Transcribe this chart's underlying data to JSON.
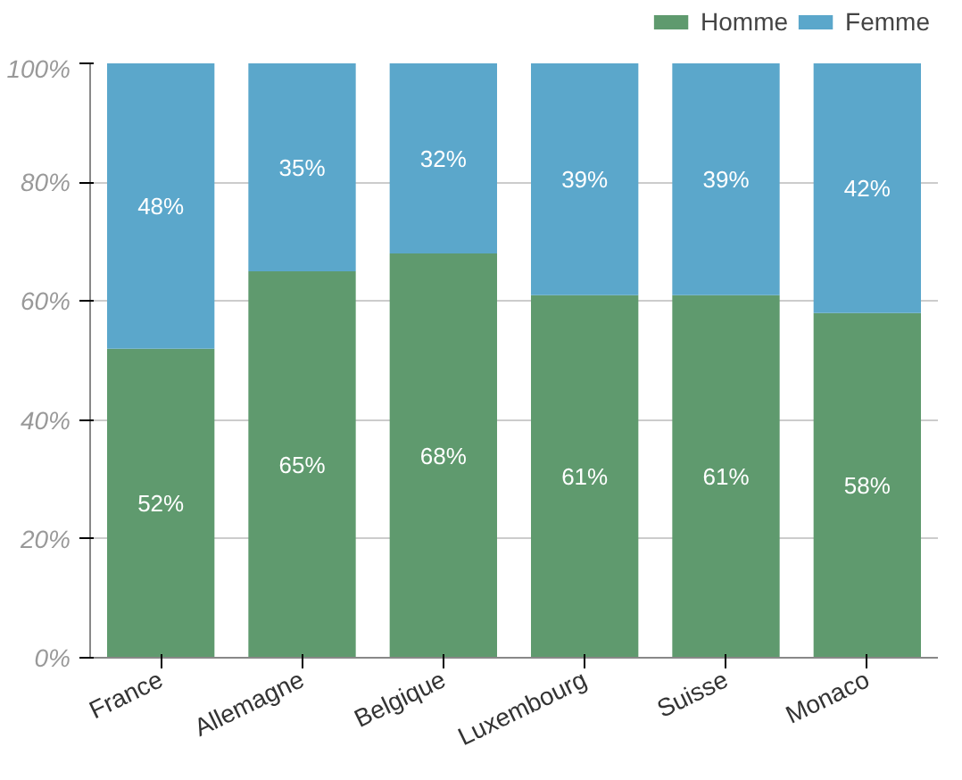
{
  "chart_data": {
    "type": "bar",
    "stacked": true,
    "categories": [
      "France",
      "Allemagne",
      "Belgique",
      "Luxembourg",
      "Suisse",
      "Monaco"
    ],
    "series": [
      {
        "name": "Homme",
        "color": "#5f9a6e",
        "values": [
          52,
          65,
          68,
          61,
          61,
          58
        ],
        "value_labels": [
          "52%",
          "65%",
          "68%",
          "61%",
          "61%",
          "58%"
        ]
      },
      {
        "name": "Femme",
        "color": "#5ba7cb",
        "values": [
          48,
          35,
          32,
          39,
          39,
          42
        ],
        "value_labels": [
          "48%",
          "35%",
          "32%",
          "39%",
          "39%",
          "42%"
        ]
      }
    ],
    "ylim": [
      0,
      100
    ],
    "yticks": [
      {
        "value": 0,
        "label": "0%"
      },
      {
        "value": 20,
        "label": "20%"
      },
      {
        "value": 40,
        "label": "40%"
      },
      {
        "value": 60,
        "label": "60%"
      },
      {
        "value": 80,
        "label": "80%"
      },
      {
        "value": 100,
        "label": "100%"
      }
    ],
    "grid": "y",
    "legend": "top right"
  }
}
